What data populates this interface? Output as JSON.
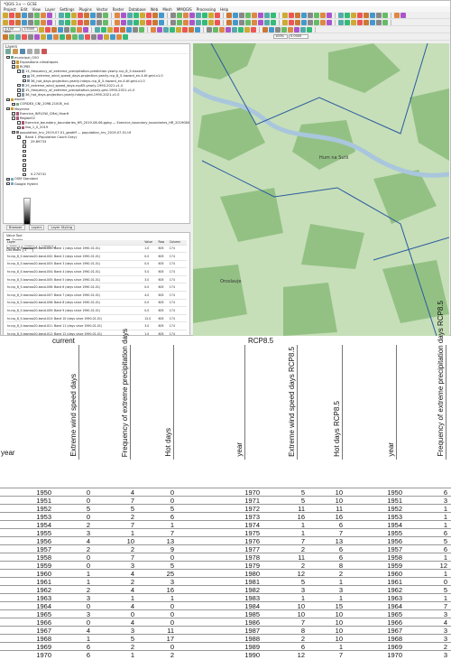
{
  "window": {
    "title": "*QGIS 3.x — GCSE"
  },
  "menu": [
    "Project",
    "Edit",
    "View",
    "Layer",
    "Settings",
    "Plugins",
    "Vector",
    "Raster",
    "Database",
    "Web",
    "Mesh",
    "MMQGIS",
    "Processing",
    "Help"
  ],
  "toolbar": {
    "zoom_value": "1:100 000",
    "scale_value": "1:5000",
    "rotation_value": "0.0000",
    "magnify_value": "100%",
    "epsg": "EPSG:4326"
  },
  "layers_panel": {
    "title": "Layers",
    "items": [
      {
        "label": "municipal_OSO",
        "indent": 0,
        "checked": true,
        "icon": "#6a8"
      },
      {
        "label": "Expositions climatiques",
        "indent": 1,
        "checked": true,
        "icon": "#c93"
      },
      {
        "label": "RCP85",
        "indent": 1,
        "checked": true,
        "icon": "#c93"
      },
      {
        "label": "13_frequency_of_extreme_precipitation-prediction-yearly-rcp_8_5-hazard3",
        "indent": 2,
        "checked": false,
        "icon": "#89a"
      },
      {
        "label": "24_extreme_wind_speed_days-projection-yearly-rcp_8_5-hazard_en-4.tif-grid-v1.0",
        "indent": 3,
        "checked": false,
        "icon": "#89a"
      },
      {
        "label": "36_hot_days-projection-yearly-hdays-rcp_8_5-hazard_en-4.tif-grid-v1.0",
        "indent": 3,
        "checked": false,
        "icon": "#89a"
      },
      {
        "label": "29_extreme_wind_speed_days-rcp85-yearly-1990-2021-v1.0",
        "indent": 2,
        "checked": false,
        "icon": "#89a"
      },
      {
        "label": "15_frequency_of_extreme_precipitation-yearly-grid-1990-2021-v1.0",
        "indent": 2,
        "checked": false,
        "icon": "#89a"
      },
      {
        "label": "36_hot_days-projection-yearly-hdays-grid-1990-2021-v1.0",
        "indent": 2,
        "checked": false,
        "icon": "#89a"
      },
      {
        "label": "export",
        "indent": 0,
        "checked": true,
        "icon": "#c93"
      },
      {
        "label": "CORDEX_CNI_2098.2100E_in4",
        "indent": 1,
        "checked": true,
        "icon": "#7a7"
      },
      {
        "label": "Moyenne",
        "indent": 0,
        "checked": true,
        "icon": "#c93"
      },
      {
        "label": "Exercice_INFLOW_CMal_Hvar6",
        "indent": 1,
        "checked": true,
        "icon": "#a57"
      },
      {
        "label": "Region02",
        "indent": 1,
        "checked": false,
        "icon": "#a57"
      },
      {
        "label": "Exercice_boundary_boundaries_HR_2019-08-06.gpkg — Exercice_boundary_boundaries_HR_20190806",
        "indent": 2,
        "checked": false,
        "icon": "#a57"
      },
      {
        "label": "lisa_1_0_2019",
        "indent": 2,
        "checked": false,
        "icon": "#a57"
      },
      {
        "label": "population_hrv_2019-07-01_geotiff — population_hrv_2019-07-01.tif",
        "indent": 1,
        "checked": true,
        "icon": "#777"
      },
      {
        "label": "Band 1 (Population Count Gray)",
        "indent": 2,
        "checked": false,
        "icon": "#fff"
      },
      {
        "label": "29.89733",
        "indent": 3,
        "checked": false,
        "icon": "#fff"
      },
      {
        "label": "",
        "indent": 3,
        "checked": false,
        "icon": "#fff"
      },
      {
        "label": "",
        "indent": 3,
        "checked": false,
        "icon": "#fff"
      },
      {
        "label": "",
        "indent": 3,
        "checked": false,
        "icon": "#fff"
      },
      {
        "label": "",
        "indent": 3,
        "checked": false,
        "icon": "#fff"
      },
      {
        "label": "",
        "indent": 3,
        "checked": false,
        "icon": "#fff"
      },
      {
        "label": "",
        "indent": 3,
        "checked": false,
        "icon": "#fff"
      },
      {
        "label": "0.274741",
        "indent": 3,
        "checked": false,
        "icon": "#fff"
      },
      {
        "label": "OSM Standard",
        "indent": 0,
        "checked": true,
        "icon": "#7ab"
      },
      {
        "label": "Google Hybrid",
        "indent": 0,
        "checked": false,
        "icon": "#7ab"
      }
    ]
  },
  "panel_tabs": [
    "Browser",
    "Layers",
    "Layer Styling"
  ],
  "value_tool": {
    "title": "Value Tool",
    "enable_label": "Enable",
    "tabs": [
      "Table",
      "Graph",
      "Options"
    ],
    "ordering_label": "Decimals",
    "ordering_value": "2",
    "columns": [
      "Layer",
      "Value",
      "Row",
      "Column"
    ],
    "rows": [
      [
        "hr-rcp_8_5-tasmax20-band-001: Band 1 (days since 1990-01-01)",
        "1.0",
        "605",
        "174"
      ],
      [
        "hr-rcp_8_5-tasmax20-band-002: Band 2 (days since 1990-01-01)",
        "0.0",
        "605",
        "174"
      ],
      [
        "hr-rcp_8_5-tasmax20-band-003: Band 3 (days since 1990-01-01)",
        "0.0",
        "605",
        "174"
      ],
      [
        "hr-rcp_8_5-tasmax20-band-004: Band 4 (days since 1990-01-01)",
        "5.0",
        "605",
        "174"
      ],
      [
        "hr-rcp_8_5-tasmax20-band-005: Band 5 (days since 1990-01-01)",
        "3.0",
        "605",
        "174"
      ],
      [
        "hr-rcp_8_5-tasmax20-band-006: Band 6 (days since 1990-01-01)",
        "0.0",
        "605",
        "174"
      ],
      [
        "hr-rcp_8_5-tasmax20-band-007: Band 7 (days since 1990-01-01)",
        "4.0",
        "605",
        "174"
      ],
      [
        "hr-rcp_8_5-tasmax20-band-008: Band 8 (days since 1990-01-01)",
        "0.0",
        "605",
        "174"
      ],
      [
        "hr-rcp_8_5-tasmax20-band-009: Band 9 (days since 1990-01-01)",
        "0.0",
        "605",
        "174"
      ],
      [
        "hr-rcp_8_5-tasmax20-band-010: Band 10 (days since 1990-01-01)",
        "12.0",
        "605",
        "174"
      ],
      [
        "hr-rcp_8_5-tasmax20-band-011: Band 11 (days since 1990-01-01)",
        "3.0",
        "605",
        "174"
      ],
      [
        "hr-rcp_8_5-tasmax20-band-012: Band 12 (days since 1990-01-01)",
        "1.0",
        "605",
        "174"
      ]
    ]
  },
  "map": {
    "label_town1": "Hum na Sutli",
    "label_town2": "Oroslavje",
    "colors": {
      "forest": "#93c184",
      "field": "#c6dfb8",
      "water": "#a9c6dd",
      "boundary": "#2b5a9e"
    }
  },
  "sheet": {
    "group_current": "current",
    "group_rcp": "RCP8.5",
    "year_label": "year",
    "headers": [
      "Extreme wind speed days",
      "Frequency of extreme precipitation days",
      "Hot days",
      "year",
      "Extreme wind speed days RCP8.5",
      "Hot days RCP8.5",
      "year",
      "Frequency of extreme precipitation days RCP8.5"
    ],
    "rows": [
      [
        "1950",
        "0",
        "4",
        "0",
        "1970",
        "5",
        "10",
        "1950",
        "6"
      ],
      [
        "1951",
        "0",
        "7",
        "0",
        "1971",
        "5",
        "10",
        "1951",
        "3"
      ],
      [
        "1952",
        "5",
        "5",
        "5",
        "1972",
        "11",
        "11",
        "1952",
        "1"
      ],
      [
        "1953",
        "0",
        "2",
        "6",
        "1973",
        "16",
        "16",
        "1953",
        "1"
      ],
      [
        "1954",
        "2",
        "7",
        "1",
        "1974",
        "1",
        "6",
        "1954",
        "1"
      ],
      [
        "1955",
        "3",
        "1",
        "7",
        "1975",
        "1",
        "7",
        "1955",
        "6"
      ],
      [
        "1956",
        "4",
        "10",
        "13",
        "1976",
        "7",
        "13",
        "1956",
        "5"
      ],
      [
        "1957",
        "2",
        "2",
        "9",
        "1977",
        "2",
        "6",
        "1957",
        "6"
      ],
      [
        "1958",
        "0",
        "7",
        "0",
        "1978",
        "11",
        "6",
        "1958",
        "1"
      ],
      [
        "1959",
        "0",
        "3",
        "5",
        "1979",
        "2",
        "8",
        "1959",
        "12"
      ],
      [
        "1960",
        "1",
        "4",
        "25",
        "1980",
        "12",
        "2",
        "1960",
        "1"
      ],
      [
        "1961",
        "1",
        "2",
        "3",
        "1981",
        "5",
        "1",
        "1961",
        "0"
      ],
      [
        "1962",
        "2",
        "4",
        "16",
        "1982",
        "3",
        "3",
        "1962",
        "5"
      ],
      [
        "1963",
        "3",
        "1",
        "1",
        "1983",
        "1",
        "1",
        "1963",
        "1"
      ],
      [
        "1964",
        "0",
        "4",
        "0",
        "1984",
        "10",
        "15",
        "1964",
        "7"
      ],
      [
        "1965",
        "3",
        "0",
        "0",
        "1985",
        "10",
        "10",
        "1965",
        "3"
      ],
      [
        "1966",
        "0",
        "4",
        "0",
        "1986",
        "7",
        "10",
        "1966",
        "4"
      ],
      [
        "1967",
        "4",
        "3",
        "11",
        "1987",
        "8",
        "10",
        "1967",
        "3"
      ],
      [
        "1968",
        "1",
        "5",
        "17",
        "1988",
        "2",
        "10",
        "1968",
        "3"
      ],
      [
        "1969",
        "6",
        "2",
        "0",
        "1989",
        "6",
        "1",
        "1969",
        "2"
      ],
      [
        "1970",
        "6",
        "1",
        "2",
        "1990",
        "12",
        "7",
        "1970",
        "3"
      ]
    ]
  }
}
